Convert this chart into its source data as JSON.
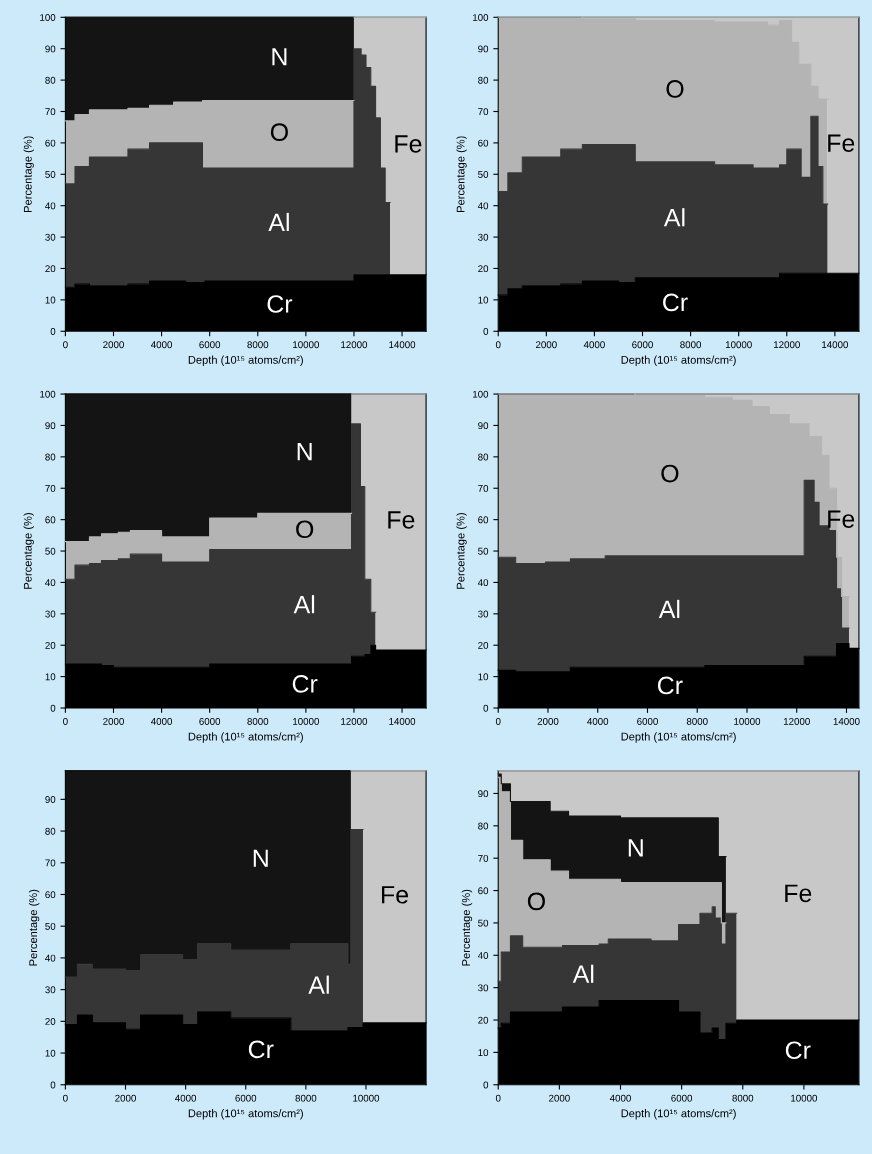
{
  "chart_data": [
    {
      "type": "area",
      "stacked": true,
      "xlabel": "Depth (10¹⁵ atoms/cm²)",
      "ylabel": "Percentage (%)",
      "xlim": [
        0,
        15000
      ],
      "ylim": [
        0,
        100
      ],
      "xticks": [
        0,
        2000,
        4000,
        6000,
        8000,
        10000,
        12000,
        14000
      ],
      "yticks": [
        0,
        10,
        20,
        30,
        40,
        50,
        60,
        70,
        80,
        90,
        100
      ],
      "x": [
        0,
        400,
        400,
        1000,
        1000,
        2600,
        2600,
        3500,
        3500,
        4500,
        4500,
        5000,
        5000,
        5700,
        5700,
        5800,
        5800,
        12000,
        12000,
        12300,
        12300,
        12500,
        12500,
        12700,
        12700,
        12900,
        12900,
        13100,
        13100,
        13300,
        13300,
        13500,
        13500,
        15000
      ],
      "series": [
        {
          "name": "Cr",
          "color": "#000000",
          "values": [
            14,
            14,
            15,
            15,
            14.5,
            14.5,
            15,
            15,
            16,
            16,
            16,
            16,
            15.5,
            15.5,
            15.5,
            15.5,
            16,
            16,
            18,
            18,
            18,
            18,
            18,
            18,
            18,
            18,
            18,
            18,
            18,
            18,
            18,
            18,
            18,
            18
          ]
        },
        {
          "name": "Al",
          "color": "#363636",
          "values": [
            33,
            33,
            37.5,
            37.5,
            41,
            41,
            43,
            43,
            44,
            44,
            44,
            44,
            44.5,
            44.5,
            36.5,
            36.5,
            36,
            36,
            72,
            72,
            70,
            70,
            66,
            66,
            60,
            60,
            50,
            50,
            34,
            34,
            23,
            23,
            null,
            null
          ]
        },
        {
          "name": "O",
          "color": "#b4b4b4",
          "values": [
            20,
            20,
            16.5,
            16.5,
            15,
            15,
            13,
            13,
            12,
            12,
            13,
            13,
            13,
            13,
            21.5,
            21.5,
            21.5,
            21.5,
            null,
            null,
            null,
            null,
            null,
            null,
            null,
            null,
            null,
            null,
            null,
            null,
            null,
            null,
            null,
            null
          ]
        },
        {
          "name": "N",
          "color": "#141414",
          "values": [
            33,
            33,
            31,
            31,
            29.5,
            29.5,
            29,
            29,
            28,
            28,
            27,
            27,
            27,
            27,
            26.5,
            26.5,
            26.5,
            26.5,
            null,
            null,
            null,
            null,
            null,
            null,
            null,
            null,
            null,
            null,
            null,
            null,
            null,
            null,
            null,
            null
          ]
        },
        {
          "name": "Fe",
          "color": "#c8c8c8",
          "values": [
            null,
            null,
            null,
            null,
            null,
            null,
            null,
            null,
            null,
            null,
            null,
            null,
            null,
            null,
            null,
            null,
            null,
            null,
            10,
            10,
            12,
            12,
            16,
            16,
            22,
            22,
            32,
            32,
            48,
            48,
            59,
            59,
            82,
            82
          ]
        }
      ]
    },
    {
      "type": "area",
      "stacked": true,
      "xlabel": "Depth (10¹⁵ atoms/cm²)",
      "ylabel": "Percentage (%)",
      "xlim": [
        0,
        15000
      ],
      "ylim": [
        0,
        100
      ],
      "xticks": [
        0,
        2000,
        4000,
        6000,
        8000,
        10000,
        12000,
        14000
      ],
      "yticks": [
        0,
        10,
        20,
        30,
        40,
        50,
        60,
        70,
        80,
        90,
        100
      ],
      "x": [
        0,
        400,
        400,
        1000,
        1000,
        2600,
        2600,
        3500,
        3500,
        5000,
        5000,
        5700,
        5700,
        9000,
        9000,
        10600,
        10600,
        11200,
        11200,
        11700,
        11700,
        12000,
        12000,
        12200,
        12200,
        12500,
        12500,
        12600,
        12600,
        13000,
        13000,
        13300,
        13300,
        13500,
        13500,
        13700,
        13700,
        15000
      ],
      "series": [
        {
          "name": "Cr",
          "color": "#000000",
          "values": [
            11.5,
            11.5,
            13.5,
            13.5,
            14.5,
            14.5,
            15,
            15,
            16,
            16,
            15.5,
            15.5,
            17,
            17,
            17,
            17,
            17,
            17,
            17,
            17,
            18.5,
            18.5,
            18.5,
            18.5,
            18.5,
            18.5,
            18.5,
            18.5,
            18.5,
            18.5,
            18.5,
            18.5,
            18.5,
            18.5,
            18.5,
            18.5,
            18.5,
            18.5
          ]
        },
        {
          "name": "Al",
          "color": "#363636",
          "values": [
            33,
            33,
            37,
            37,
            41,
            41,
            43,
            43,
            43.5,
            43.5,
            44,
            44,
            37,
            37,
            36,
            36,
            35,
            35,
            35,
            35,
            34.5,
            34.5,
            39.5,
            39.5,
            39.5,
            39.5,
            39.5,
            39.5,
            30.5,
            30.5,
            50,
            50,
            34,
            34,
            22,
            22,
            null,
            null
          ]
        },
        {
          "name": "O",
          "color": "#b4b4b4",
          "values": [
            55.5,
            55.5,
            49.5,
            49.5,
            44.5,
            44.5,
            42,
            42,
            40,
            40,
            40,
            40,
            45,
            45,
            45.5,
            45.5,
            46.5,
            46.5,
            45.5,
            45.5,
            46,
            46,
            41,
            41,
            34,
            34,
            27,
            27,
            36,
            36,
            9.5,
            9.5,
            21.5,
            21.5,
            33.5,
            33.5,
            null,
            null
          ]
        },
        {
          "name": "Fe",
          "color": "#c8c8c8",
          "values": [
            null,
            null,
            null,
            null,
            null,
            null,
            null,
            null,
            0.5,
            0.5,
            0.5,
            0.5,
            1,
            1,
            1.5,
            1.5,
            1.5,
            1.5,
            2.5,
            2.5,
            1,
            1,
            1,
            1,
            8,
            8,
            15,
            15,
            15,
            15,
            22,
            22,
            26,
            26,
            26,
            26,
            81.5,
            81.5
          ]
        }
      ]
    },
    {
      "type": "area",
      "stacked": true,
      "xlabel": "Depth (10¹⁵ atoms/cm²)",
      "ylabel": "Percentage (%)",
      "xlim": [
        0,
        15000
      ],
      "ylim": [
        0,
        100
      ],
      "xticks": [
        0,
        2000,
        4000,
        6000,
        8000,
        10000,
        12000,
        14000
      ],
      "yticks": [
        0,
        10,
        20,
        30,
        40,
        50,
        60,
        70,
        80,
        90,
        100
      ],
      "x": [
        0,
        400,
        400,
        1000,
        1000,
        1500,
        1500,
        2000,
        2000,
        2200,
        2200,
        2700,
        2700,
        4000,
        4000,
        6000,
        6000,
        8000,
        8000,
        11900,
        11900,
        12270,
        12270,
        12450,
        12450,
        12700,
        12700,
        12900,
        12900,
        15000
      ],
      "series": [
        {
          "name": "Cr",
          "color": "#000000",
          "values": [
            14,
            14,
            14,
            14,
            14,
            14,
            13.5,
            13.5,
            13,
            13,
            13,
            13,
            13,
            13,
            13,
            13,
            14,
            14,
            14,
            14,
            16.5,
            16.5,
            16.5,
            16.5,
            17,
            17,
            20,
            20,
            18.5,
            18.5
          ]
        },
        {
          "name": "Al",
          "color": "#363636",
          "values": [
            27,
            27,
            31.5,
            31.5,
            32,
            32,
            33.5,
            33.5,
            34,
            34,
            34.5,
            34.5,
            36,
            36,
            33.5,
            33.5,
            36.5,
            36.5,
            36.5,
            36.5,
            74,
            74,
            54,
            54,
            24,
            24,
            10.5,
            10.5,
            null,
            null
          ]
        },
        {
          "name": "O",
          "color": "#b4b4b4",
          "values": [
            12,
            12,
            7.5,
            7.5,
            8.5,
            8.5,
            8.5,
            8.5,
            8.5,
            8.5,
            8.5,
            8.5,
            7.5,
            7.5,
            8,
            8,
            10,
            10,
            11.5,
            11.5,
            null,
            null,
            null,
            null,
            null,
            null,
            null,
            null,
            null,
            null
          ]
        },
        {
          "name": "N",
          "color": "#141414",
          "values": [
            47,
            47,
            47,
            47,
            45.5,
            45.5,
            44.5,
            44.5,
            44.5,
            44.5,
            44,
            44,
            43.5,
            43.5,
            45.5,
            45.5,
            39.5,
            39.5,
            38,
            38,
            null,
            null,
            null,
            null,
            null,
            null,
            null,
            null,
            null,
            null
          ]
        },
        {
          "name": "Fe",
          "color": "#c8c8c8",
          "values": [
            null,
            null,
            null,
            null,
            null,
            null,
            null,
            null,
            null,
            null,
            null,
            null,
            null,
            null,
            null,
            null,
            null,
            null,
            null,
            null,
            9.5,
            9.5,
            29.5,
            29.5,
            59,
            59,
            69.5,
            69.5,
            81.5,
            81.5
          ]
        }
      ]
    },
    {
      "type": "area",
      "stacked": true,
      "xlabel": "Depth (10¹⁵ atoms/cm²)",
      "ylabel": "Percentage (%)",
      "xlim": [
        0,
        14500
      ],
      "ylim": [
        0,
        100
      ],
      "xticks": [
        0,
        2000,
        4000,
        6000,
        8000,
        10000,
        12000,
        14000
      ],
      "yticks": [
        0,
        10,
        20,
        30,
        40,
        50,
        60,
        70,
        80,
        90,
        100
      ],
      "x": [
        0,
        700,
        700,
        1900,
        1900,
        2900,
        2900,
        4300,
        4300,
        5500,
        5500,
        8300,
        8300,
        9400,
        9400,
        10200,
        10200,
        10900,
        10900,
        11700,
        11700,
        12300,
        12300,
        12500,
        12500,
        12700,
        12700,
        12900,
        12900,
        13000,
        13000,
        13300,
        13300,
        13600,
        13600,
        13800,
        13800,
        14100,
        14100,
        14500
      ],
      "series": [
        {
          "name": "Cr",
          "color": "#000000",
          "values": [
            12,
            12,
            11.5,
            11.5,
            11.5,
            11.5,
            13,
            13,
            13,
            13,
            13,
            13,
            13.5,
            13.5,
            13.5,
            13.5,
            13.5,
            13.5,
            13.5,
            13.5,
            13.5,
            13.5,
            16.5,
            16.5,
            16.5,
            16.5,
            16.5,
            16.5,
            16.5,
            16.5,
            16.5,
            16.5,
            16.5,
            16.5,
            20.5,
            20.5,
            20.5,
            20.5,
            19,
            19
          ]
        },
        {
          "name": "Al",
          "color": "#363636",
          "values": [
            36,
            36,
            34.5,
            34.5,
            35,
            35,
            34.5,
            34.5,
            35.5,
            35.5,
            35.5,
            35.5,
            35,
            35,
            35,
            35,
            35,
            35,
            35,
            35,
            35,
            35,
            56,
            56,
            56,
            56,
            49,
            49,
            41.5,
            41.5,
            41.5,
            41.5,
            40,
            40,
            17.5,
            17.5,
            5,
            5,
            null,
            null
          ]
        },
        {
          "name": "O",
          "color": "#b4b4b4",
          "values": [
            52,
            52,
            54,
            54,
            53.5,
            53.5,
            52.5,
            52.5,
            51.5,
            51.5,
            51,
            51,
            50.5,
            50.5,
            49.5,
            49.5,
            47.5,
            47.5,
            45,
            45,
            42,
            42,
            18,
            18,
            14,
            14,
            21,
            21,
            28.5,
            28.5,
            22.5,
            22.5,
            13.5,
            13.5,
            10,
            10,
            10,
            10,
            null,
            null
          ]
        },
        {
          "name": "Fe",
          "color": "#c8c8c8",
          "values": [
            null,
            null,
            null,
            null,
            null,
            null,
            null,
            null,
            null,
            null,
            0.5,
            0.5,
            1,
            1,
            2,
            2,
            4,
            4,
            6.5,
            6.5,
            9.5,
            9.5,
            9.5,
            9.5,
            13.5,
            13.5,
            13.5,
            13.5,
            13.5,
            13.5,
            19.5,
            19.5,
            30,
            30,
            52,
            52,
            64.5,
            64.5,
            81,
            81
          ]
        }
      ]
    },
    {
      "type": "area",
      "stacked": true,
      "xlabel": "Depth (10¹⁵ atoms/cm²)",
      "ylabel": "Percentage (%)",
      "xlim": [
        0,
        12000
      ],
      "ylim": [
        0,
        99
      ],
      "xticks": [
        0,
        2000,
        4000,
        6000,
        8000,
        10000
      ],
      "yticks": [
        0,
        10,
        20,
        30,
        40,
        50,
        60,
        70,
        80,
        90
      ],
      "x": [
        0,
        400,
        400,
        900,
        900,
        2000,
        2000,
        2500,
        2500,
        3900,
        3900,
        4400,
        4400,
        5500,
        5500,
        7500,
        7500,
        9400,
        9400,
        9500,
        9500,
        9900,
        9900,
        12000
      ],
      "series": [
        {
          "name": "Cr",
          "color": "#000000",
          "values": [
            19,
            19,
            22,
            22,
            19.5,
            19.5,
            17.5,
            17.5,
            22,
            22,
            19,
            19,
            23,
            23,
            21,
            21,
            17,
            17,
            18,
            18,
            18,
            18,
            19.5,
            19.5
          ]
        },
        {
          "name": "Al",
          "color": "#363636",
          "values": [
            15,
            15,
            16,
            16,
            17,
            17,
            18.5,
            18.5,
            19,
            19,
            20.5,
            20.5,
            21.5,
            21.5,
            21.5,
            21.5,
            27.5,
            27.5,
            20,
            20,
            62.5,
            62.5,
            null,
            null
          ]
        },
        {
          "name": "N",
          "color": "#141414",
          "values": [
            65,
            65,
            61,
            61,
            62.5,
            62.5,
            63,
            63,
            58,
            58,
            59.5,
            59.5,
            54.5,
            54.5,
            56.5,
            56.5,
            54.5,
            54.5,
            61,
            61,
            null,
            null,
            null,
            null
          ]
        },
        {
          "name": "Fe",
          "color": "#c8c8c8",
          "values": [
            null,
            null,
            null,
            null,
            null,
            null,
            null,
            null,
            null,
            null,
            null,
            null,
            null,
            null,
            null,
            null,
            null,
            null,
            null,
            null,
            18.5,
            18.5,
            79.5,
            79.5
          ]
        }
      ]
    },
    {
      "type": "area",
      "stacked": true,
      "xlabel": "Depth (10¹⁵ atoms/cm²)",
      "ylabel": "Percentage (%)",
      "xlim": [
        0,
        11800
      ],
      "ylim": [
        0,
        97
      ],
      "xticks": [
        0,
        2000,
        4000,
        6000,
        8000,
        10000
      ],
      "yticks": [
        0,
        10,
        20,
        30,
        40,
        50,
        60,
        70,
        80,
        90
      ],
      "x": [
        0,
        100,
        100,
        400,
        400,
        800,
        800,
        1700,
        1700,
        2100,
        2100,
        2300,
        2300,
        3300,
        3300,
        3600,
        3600,
        4000,
        4000,
        5000,
        5000,
        5900,
        5900,
        6600,
        6600,
        7000,
        7000,
        7100,
        7100,
        7200,
        7200,
        7300,
        7300,
        7450,
        7450,
        7800,
        7800,
        11800
      ],
      "series": [
        {
          "name": "Cr",
          "color": "#000000",
          "values": [
            17.5,
            17.5,
            19,
            19,
            22.5,
            22.5,
            22.5,
            22.5,
            22.5,
            22.5,
            24,
            24,
            24,
            24,
            26,
            26,
            26,
            26,
            26,
            26,
            26,
            26,
            22.5,
            22.5,
            16,
            16,
            17.5,
            17.5,
            17.5,
            17.5,
            14,
            14,
            14,
            14,
            19,
            19,
            20,
            20
          ]
        },
        {
          "name": "Al",
          "color": "#363636",
          "values": [
            14.5,
            14.5,
            22,
            22,
            23.5,
            23.5,
            20,
            20,
            20,
            20,
            19,
            19,
            19,
            19,
            17.5,
            17.5,
            19,
            19,
            19,
            19,
            18.5,
            18.5,
            27,
            27,
            37,
            37,
            37.5,
            37.5,
            34,
            34,
            37.5,
            37.5,
            29.5,
            29.5,
            34,
            34,
            null,
            null
          ]
        },
        {
          "name": "O",
          "color": "#b4b4b4",
          "values": [
            63,
            63,
            49.5,
            49.5,
            29.5,
            29.5,
            27,
            27,
            23.5,
            23.5,
            23,
            23,
            20.5,
            20.5,
            20,
            20,
            18.5,
            18.5,
            17.5,
            17.5,
            18,
            18,
            13,
            13,
            9.5,
            9.5,
            7.5,
            7.5,
            11,
            11,
            11,
            11,
            6.5,
            6.5,
            null,
            null,
            null,
            null
          ]
        },
        {
          "name": "N",
          "color": "#141414",
          "values": [
            1,
            1,
            2.5,
            2.5,
            12,
            12,
            18,
            18,
            18.5,
            18.5,
            18.5,
            18.5,
            19.5,
            19.5,
            19.5,
            19.5,
            19.5,
            19.5,
            20,
            20,
            20,
            20,
            20,
            20,
            20,
            20,
            20,
            20,
            20,
            20,
            8,
            8,
            20.5,
            20.5,
            null,
            null,
            null,
            null
          ]
        },
        {
          "name": "Fe",
          "color": "#c8c8c8",
          "values": [
            1,
            1,
            4,
            4,
            9.5,
            9.5,
            9.5,
            9.5,
            12.5,
            12.5,
            12.5,
            12.5,
            14,
            14,
            14,
            14,
            14,
            14,
            14.5,
            14.5,
            14.5,
            14.5,
            14.5,
            14.5,
            14.5,
            14.5,
            14.5,
            14.5,
            14.5,
            14.5,
            26.5,
            26.5,
            26.5,
            26.5,
            44,
            44,
            77,
            77
          ]
        }
      ]
    }
  ]
}
